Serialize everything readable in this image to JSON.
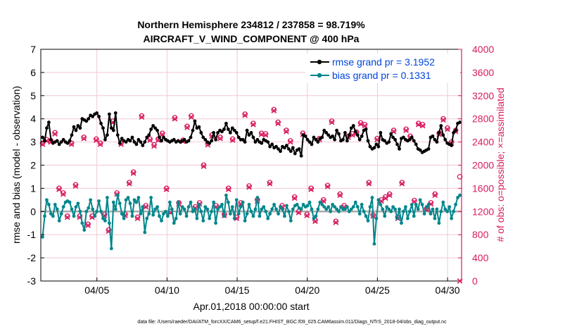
{
  "chart_data": {
    "type": "line",
    "title_line1": "Northern Hemisphere 234812 / 237858 = 98.719%",
    "title_line2": "AIRCRAFT_V_WIND_COMPONENT @ 400 hPa",
    "xlabel": "Apr.01,2018 00:00:00 start",
    "ylabel_left": "rmse and bias (model - observation)",
    "ylabel_right": "# of obs: o=possible; ×=assimilated",
    "footer": "data file: /Users/raeder/DAI/ATM_forcXX/CAM6_setup/f.e21.FHIST_BGC.f09_025.CAM6assim.011/Diags_NTrS_2018-04/obs_diag_output.nc",
    "x_tick_labels": [
      "04/05",
      "04/10",
      "04/15",
      "04/20",
      "04/25",
      "04/30"
    ],
    "x_tick_values": [
      5,
      10,
      15,
      20,
      25,
      30
    ],
    "xlim": [
      1,
      31
    ],
    "ylim_left": [
      -3,
      7
    ],
    "y_ticks_left": [
      "-3",
      "-2",
      "-1",
      "0",
      "1",
      "2",
      "3",
      "4",
      "5",
      "6",
      "7"
    ],
    "ylim_right": [
      0,
      4000
    ],
    "y_ticks_right": [
      "0",
      "400",
      "800",
      "1200",
      "1600",
      "2000",
      "2400",
      "2800",
      "3200",
      "3600",
      "4000"
    ],
    "colors": {
      "rmse": "#000000",
      "bias": "#00868b",
      "obs": "#d81b60",
      "zero_line": "#aaaaaa",
      "grid": "#f0c8d2",
      "legend_text": "#0044dd"
    },
    "series": [
      {
        "name": "rmse",
        "legend": "rmse grand pr = 3.1952",
        "values": [
          3.2,
          3.05,
          3.6,
          3.85,
          3.1,
          2.95,
          3.0,
          3.05,
          2.9,
          3.0,
          3.1,
          3.0,
          2.95,
          3.05,
          3.3,
          3.65,
          3.5,
          3.7,
          3.6,
          4.0,
          3.95,
          3.9,
          4.0,
          4.15,
          4.1,
          4.2,
          4.25,
          4.1,
          3.8,
          3.6,
          3.1,
          3.3,
          4.2,
          3.6,
          3.5,
          4.25,
          3.3,
          2.95,
          3.15,
          3.05,
          3.0,
          3.1,
          3.05,
          3.2,
          3.0,
          2.9,
          3.1,
          3.0,
          2.85,
          3.0,
          3.2,
          3.3,
          3.55,
          3.7,
          3.6,
          3.5,
          3.2,
          3.05,
          3.2,
          3.1,
          3.05,
          3.0,
          3.05,
          3.1,
          3.0,
          3.05,
          3.0,
          3.05,
          3.1,
          3.0,
          3.05,
          3.2,
          3.5,
          3.9,
          3.6,
          3.65,
          3.4,
          3.2,
          3.1,
          3.0,
          2.95,
          3.05,
          3.4,
          3.1,
          3.4,
          3.5,
          3.45,
          3.55,
          3.8,
          3.55,
          3.4,
          3.6,
          3.5,
          3.4,
          3.2,
          3.1,
          3.1,
          3.0,
          3.5,
          3.3,
          3.4,
          3.2,
          3.0,
          3.1,
          3.0,
          2.95,
          3.1,
          3.05,
          3.0,
          2.8,
          2.9,
          2.75,
          2.8,
          2.7,
          2.6,
          2.8,
          2.75,
          2.85,
          2.7,
          2.6,
          2.75,
          2.5,
          2.65,
          2.7,
          2.4,
          3.3,
          3.25,
          3.1,
          3.0,
          2.9,
          3.2,
          3.1,
          3.0,
          3.15,
          3.2,
          3.5,
          3.4,
          3.3,
          3.2,
          3.25,
          3.1,
          3.5,
          3.35,
          3.05,
          3.1,
          3.4,
          3.05,
          3.3,
          3.6,
          3.7,
          3.45,
          3.3,
          3.1,
          3.25,
          3.5,
          3.55,
          3.05,
          2.8,
          2.7,
          2.75,
          2.9,
          2.8,
          3.4,
          3.1,
          3.05,
          2.95,
          3.0,
          3.35,
          3.2,
          3.1,
          2.9,
          2.7,
          3.15,
          3.2,
          3.1,
          3.05,
          3.1,
          3.2,
          3.05,
          2.9,
          2.7,
          2.65,
          2.55,
          2.6,
          2.65,
          2.7,
          3.2,
          3.25,
          3.1,
          3.0,
          3.4,
          3.7,
          3.3,
          3.1,
          2.95,
          2.9,
          2.85,
          3.4,
          3.5,
          3.8,
          3.85
        ]
      },
      {
        "name": "bias",
        "legend": "bias grand pr = 0.1331",
        "values": [
          -1.1,
          -0.2,
          0.5,
          0.3,
          -0.1,
          -0.2,
          0.3,
          0.1,
          -0.4,
          -0.1,
          0.2,
          0.4,
          0.45,
          0.4,
          0.1,
          -0.2,
          0.2,
          0.35,
          0.0,
          -0.5,
          -0.8,
          0.0,
          0.15,
          0.5,
          0.1,
          -0.2,
          0.0,
          0.45,
          0.0,
          -0.3,
          -0.4,
          0.6,
          -0.5,
          -1.6,
          0.4,
          0.1,
          0.7,
          0.35,
          -0.1,
          -0.3,
          0.5,
          0.6,
          0.35,
          -0.2,
          0.5,
          0.4,
          0.6,
          -0.1,
          0.2,
          -0.9,
          -0.3,
          -0.1,
          0.6,
          -0.15,
          0.1,
          0.2,
          -0.2,
          -0.4,
          -0.1,
          0.0,
          -0.2,
          0.4,
          0.1,
          -0.5,
          -0.3,
          0.4,
          -0.1,
          0.2,
          0.1,
          -0.2,
          0.2,
          0.4,
          0.0,
          0.1,
          -0.3,
          0.3,
          0.0,
          -0.4,
          0.2,
          0.1,
          -0.3,
          0.0,
          0.4,
          -0.5,
          0.1,
          0.2,
          0.3,
          -0.2,
          0.7,
          0.4,
          -0.1,
          0.2,
          -0.3,
          0.5,
          -0.1,
          0.2,
          0.4,
          -0.4,
          -0.1,
          0.3,
          0.0,
          -0.2,
          0.1,
          0.6,
          -0.2,
          0.1,
          0.2,
          0.0,
          -0.3,
          -0.1,
          0.1,
          0.3,
          0.1,
          -0.1,
          0.2,
          0.1,
          -0.2,
          0.25,
          0.0,
          -0.4,
          0.1,
          0.25,
          0.3,
          0.15,
          0.1,
          0.3,
          0.2,
          0.25,
          0.4,
          0.1,
          -0.3,
          -0.2,
          0.1,
          0.4,
          0.3,
          0.2,
          0.1,
          0.2,
          0.0,
          0.3,
          0.2,
          0.1,
          0.0,
          0.2,
          0.1,
          0.1,
          0.2,
          0.0,
          0.1,
          0.2,
          0.4,
          0.2,
          -0.1,
          0.3,
          0.0,
          -0.2,
          -0.4,
          0.2,
          0.6,
          -1.4,
          -0.3,
          0.5,
          0.3,
          0.1,
          -0.2,
          0.2,
          0.1,
          0.0,
          0.2,
          0.1,
          -0.3,
          0.1,
          -0.5,
          0.0,
          0.2,
          -0.3,
          0.0,
          0.3,
          -0.2,
          0.3,
          0.1,
          0.5,
          0.3,
          -0.1,
          0.2,
          0.3,
          -0.1,
          0.1,
          -0.3,
          0.1,
          -0.5,
          0.0,
          0.4,
          0.1,
          0.0,
          0.2,
          -0.3,
          0.0,
          0.3,
          0.6,
          0.7
        ]
      }
    ],
    "obs_possible": [
      2380,
      2440,
      2420,
      2560,
      1600,
      1520,
      1120,
      2380,
      1660,
      1120,
      2480,
      980,
      1120,
      2450,
      2380,
      1150,
      880,
      2760,
      1520,
      2380,
      1150,
      1700,
      1880,
      1100,
      2850,
      1300,
      2450,
      2350,
      2450,
      2550,
      1600,
      1200,
      2820,
      1350,
      2430,
      2670,
      2850,
      1280,
      1350,
      2000,
      2370,
      2520,
      1300,
      2480,
      1150,
      1600,
      2450,
      1100,
      1350,
      2880,
      1640,
      2720,
      1400,
      2550,
      2540,
      1700,
      2960,
      2740,
      1300,
      2600,
      2420,
      1450,
      1200,
      2550,
      1150,
      1600,
      1050,
      2460,
      1400,
      1650,
      2760,
      1030,
      1500,
      1300,
      2500,
      2540,
      2570,
      2730,
      2700,
      1700,
      1140,
      2460,
      1400,
      1450,
      1500,
      2600,
      1100,
      1700,
      2620,
      2500,
      1390,
      2720,
      2700,
      1250,
      1350,
      1500,
      2550,
      2800,
      2640,
      2400,
      2600,
      1800
    ],
    "obs_assimilated": [
      2360,
      2420,
      2400,
      2540,
      1580,
      1500,
      1100,
      2360,
      1640,
      1100,
      2460,
      960,
      1100,
      2430,
      2360,
      1130,
      860,
      2740,
      1500,
      2360,
      1130,
      1680,
      1860,
      1080,
      2830,
      1280,
      2430,
      2330,
      2430,
      2530,
      1580,
      1180,
      2800,
      1330,
      2410,
      2650,
      2830,
      1260,
      1330,
      1980,
      2350,
      2500,
      1280,
      2460,
      1130,
      1580,
      2430,
      1080,
      1330,
      2860,
      1620,
      2700,
      1380,
      2530,
      2520,
      1680,
      2940,
      2720,
      1280,
      2580,
      2400,
      1430,
      1180,
      2530,
      1130,
      1580,
      1030,
      2440,
      1380,
      1630,
      2740,
      1010,
      1480,
      1280,
      2480,
      2520,
      2550,
      2710,
      2680,
      1680,
      1120,
      2440,
      1380,
      1430,
      1480,
      2580,
      1080,
      1680,
      2600,
      2480,
      1370,
      2700,
      2680,
      1230,
      1330,
      1480,
      2530,
      2780,
      2620,
      2380,
      2580,
      0
    ]
  }
}
